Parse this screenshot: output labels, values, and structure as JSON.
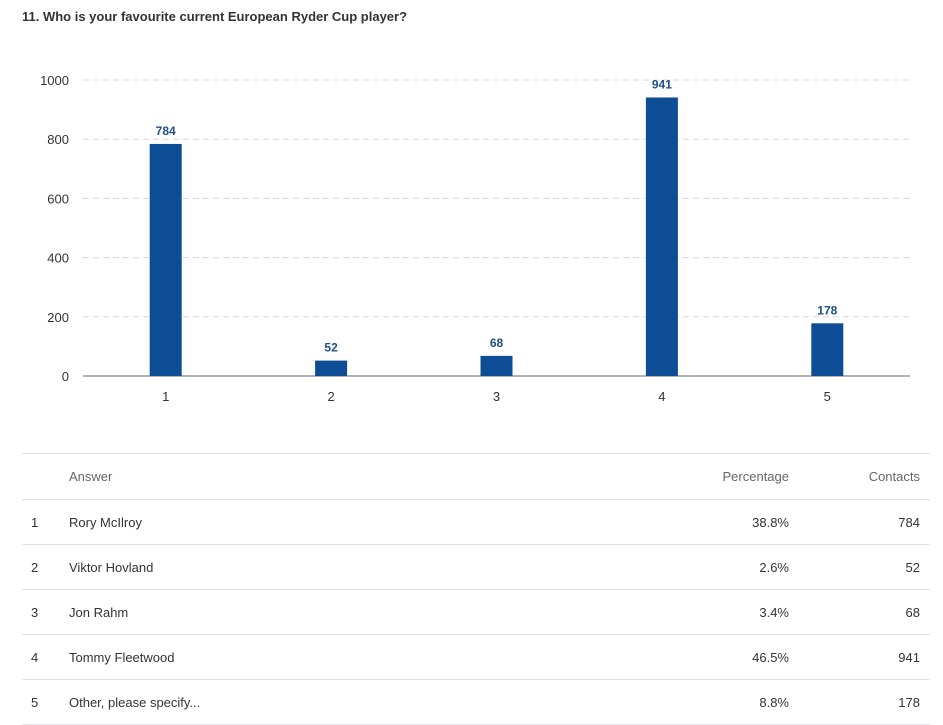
{
  "question": {
    "title": "11. Who is your favourite current European Ryder Cup player?"
  },
  "colors": {
    "bar": "#0d4d96",
    "data_label": "#1f4f86",
    "grid": "#d9d9d9",
    "axis": "#666666"
  },
  "chart_data": {
    "type": "bar",
    "categories": [
      "1",
      "2",
      "3",
      "4",
      "5"
    ],
    "values": [
      784,
      52,
      68,
      941,
      178
    ],
    "data_labels": [
      "784",
      "52",
      "68",
      "941",
      "178"
    ],
    "yticks": [
      0,
      200,
      400,
      600,
      800,
      1000
    ],
    "ylim": [
      0,
      1000
    ],
    "grid": true,
    "title": "",
    "xlabel": "",
    "ylabel": ""
  },
  "table": {
    "headers": {
      "answer": "Answer",
      "percentage": "Percentage",
      "contacts": "Contacts"
    },
    "rows": [
      {
        "num": "1",
        "answer": "Rory McIlroy",
        "percentage": "38.8%",
        "contacts": "784"
      },
      {
        "num": "2",
        "answer": "Viktor Hovland",
        "percentage": "2.6%",
        "contacts": "52"
      },
      {
        "num": "3",
        "answer": "Jon Rahm",
        "percentage": "3.4%",
        "contacts": "68"
      },
      {
        "num": "4",
        "answer": "Tommy Fleetwood",
        "percentage": "46.5%",
        "contacts": "941"
      },
      {
        "num": "5",
        "answer": "Other, please specify...",
        "percentage": "8.8%",
        "contacts": "178"
      }
    ]
  }
}
